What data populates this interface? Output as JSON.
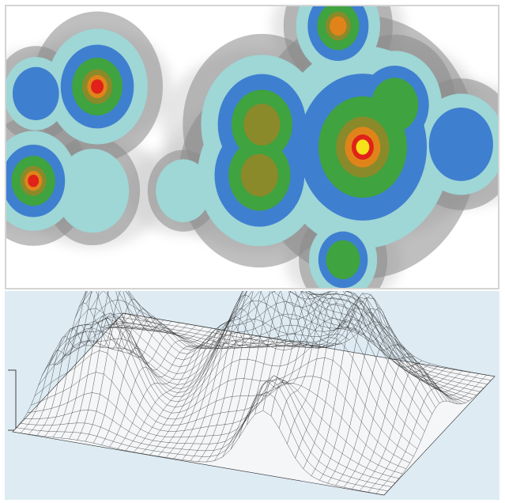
{
  "chart_data": [
    {
      "type": "heatmap",
      "title": "",
      "xlabel": "",
      "ylabel": "",
      "palette": [
        "#ffffff",
        "#c8c8c8",
        "#8a8a8a",
        "#9fd6d6",
        "#3f7fd0",
        "#3fa33f",
        "#8a8a2a",
        "#e0841a",
        "#e0221a",
        "#f5e21a"
      ],
      "peaks": [
        {
          "id": "left-top-small",
          "x": 0.06,
          "y": 0.31,
          "intensity": 0.55,
          "spread": 0.035
        },
        {
          "id": "left-top-red",
          "x": 0.185,
          "y": 0.285,
          "intensity": 0.9,
          "spread": 0.045
        },
        {
          "id": "left-bottom-red",
          "x": 0.055,
          "y": 0.62,
          "intensity": 0.85,
          "spread": 0.04
        },
        {
          "id": "left-bottom-cyan",
          "x": 0.175,
          "y": 0.655,
          "intensity": 0.38,
          "spread": 0.045
        },
        {
          "id": "mid-small-cyan",
          "x": 0.36,
          "y": 0.655,
          "intensity": 0.33,
          "spread": 0.035
        },
        {
          "id": "top-center",
          "x": 0.675,
          "y": 0.07,
          "intensity": 0.78,
          "spread": 0.04
        },
        {
          "id": "center-left-ridge-a",
          "x": 0.52,
          "y": 0.42,
          "intensity": 0.72,
          "spread": 0.06
        },
        {
          "id": "center-left-ridge-b",
          "x": 0.515,
          "y": 0.6,
          "intensity": 0.75,
          "spread": 0.06
        },
        {
          "id": "center-right-main",
          "x": 0.725,
          "y": 0.5,
          "intensity": 1.0,
          "spread": 0.075
        },
        {
          "id": "center-right-upper",
          "x": 0.79,
          "y": 0.35,
          "intensity": 0.6,
          "spread": 0.05
        },
        {
          "id": "right-blue",
          "x": 0.925,
          "y": 0.49,
          "intensity": 0.5,
          "spread": 0.05
        },
        {
          "id": "bottom-green",
          "x": 0.685,
          "y": 0.9,
          "intensity": 0.65,
          "spread": 0.035
        }
      ]
    },
    {
      "type": "surface",
      "title": "",
      "xlabel": "",
      "ylabel": "",
      "zlabel": "",
      "grid": true,
      "mesh_color": "#2a2a2a",
      "background": "#deebf3"
    }
  ]
}
